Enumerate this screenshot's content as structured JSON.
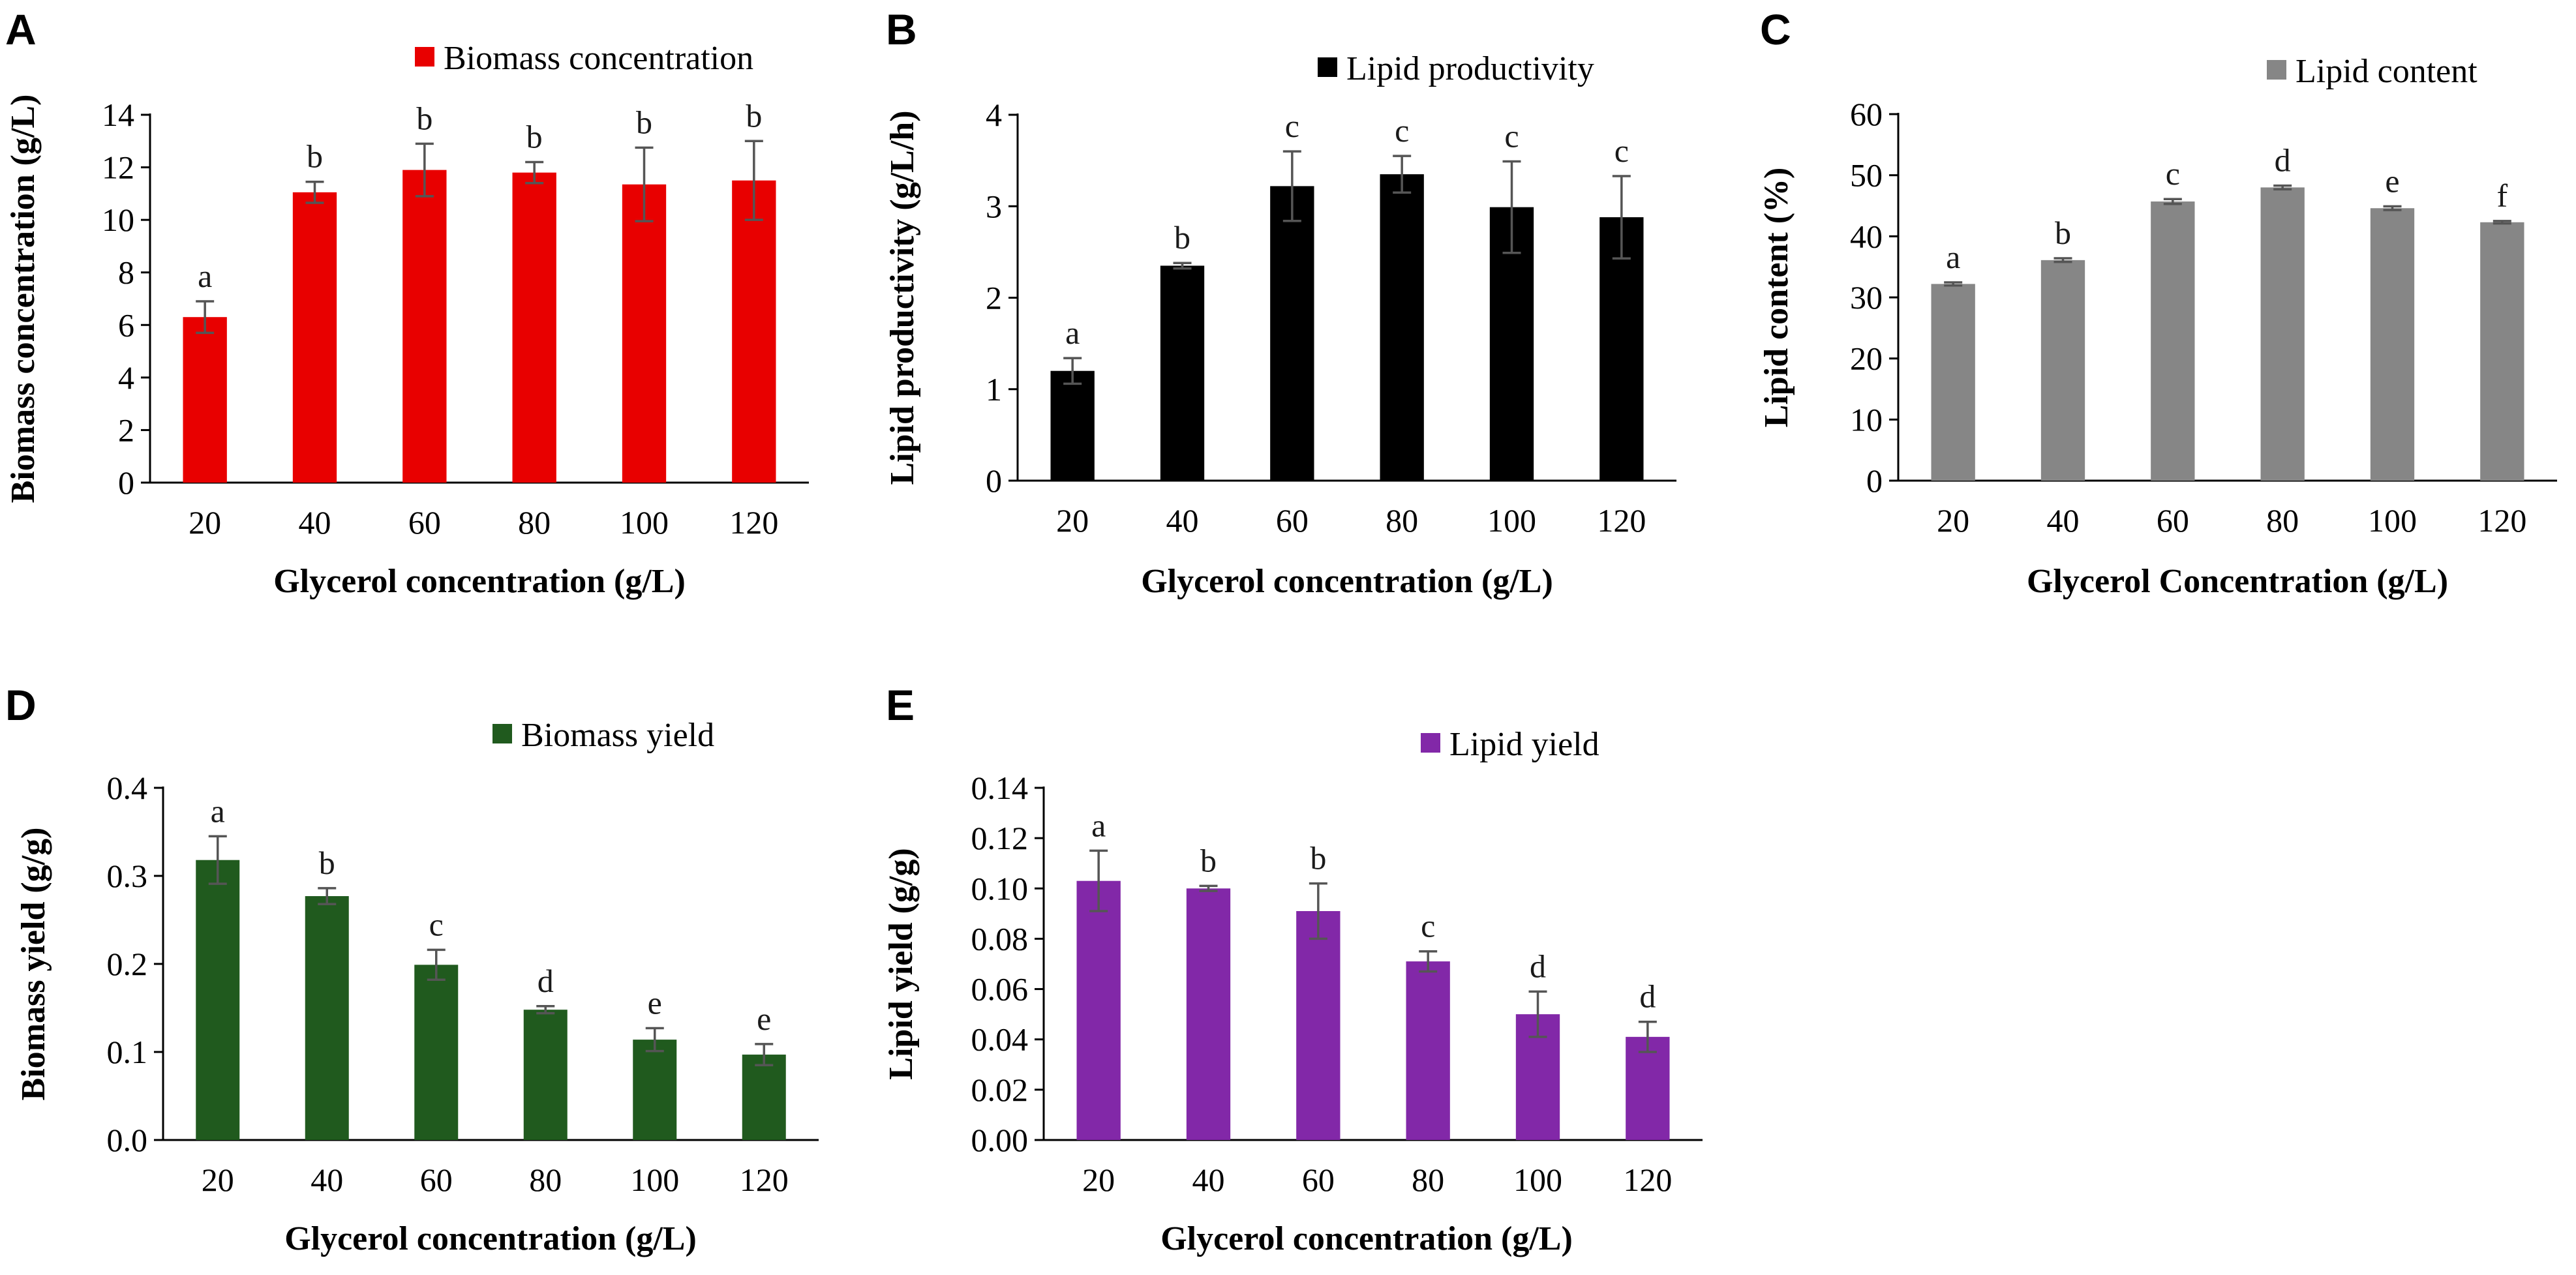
{
  "chart_data": [
    {
      "type": "bar",
      "panel": "A",
      "legend": "Biomass concentration",
      "color": "#e80000",
      "categories": [
        "20",
        "40",
        "60",
        "80",
        "100",
        "120"
      ],
      "values": [
        6.3,
        11.05,
        11.9,
        11.8,
        11.35,
        11.5
      ],
      "errors": [
        0.6,
        0.4,
        1.0,
        0.4,
        1.4,
        1.5
      ],
      "significance": [
        "a",
        "b",
        "b",
        "b",
        "b",
        "b"
      ],
      "ylim": [
        0,
        14
      ],
      "yticks": [
        "0",
        "2",
        "4",
        "6",
        "8",
        "10",
        "12",
        "14"
      ],
      "xlabel": "Glycerol concentration (g/L)",
      "ylabel": "Biomass concentration (g/L)"
    },
    {
      "type": "bar",
      "panel": "B",
      "legend": "Lipid productivity",
      "color": "#000000",
      "categories": [
        "20",
        "40",
        "60",
        "80",
        "100",
        "120"
      ],
      "values": [
        1.2,
        2.35,
        3.22,
        3.35,
        2.99,
        2.88
      ],
      "errors": [
        0.14,
        0.03,
        0.38,
        0.2,
        0.5,
        0.45
      ],
      "significance": [
        "a",
        "b",
        "c",
        "c",
        "c",
        "c"
      ],
      "ylim": [
        0,
        4
      ],
      "yticks": [
        "0",
        "1",
        "2",
        "3",
        "4"
      ],
      "xlabel": "Glycerol concentration (g/L)",
      "ylabel": "Lipid productivity (g/L/h)"
    },
    {
      "type": "bar",
      "panel": "C",
      "legend": "Lipid content",
      "color": "#868686",
      "categories": [
        "20",
        "40",
        "60",
        "80",
        "100",
        "120"
      ],
      "values": [
        32.2,
        36.1,
        45.7,
        48.0,
        44.6,
        42.3
      ],
      "errors": [
        0.25,
        0.3,
        0.4,
        0.3,
        0.3,
        0.2
      ],
      "significance": [
        "a",
        "b",
        "c",
        "d",
        "e",
        "f"
      ],
      "ylim": [
        0,
        60
      ],
      "yticks": [
        "0",
        "10",
        "20",
        "30",
        "40",
        "50",
        "60"
      ],
      "xlabel": "Glycerol Concentration (g/L)",
      "ylabel": "Lipid content (%)"
    },
    {
      "type": "bar",
      "panel": "D",
      "legend": "Biomass yield",
      "color": "#205a1e",
      "categories": [
        "20",
        "40",
        "60",
        "80",
        "100",
        "120"
      ],
      "values": [
        0.318,
        0.277,
        0.199,
        0.148,
        0.114,
        0.097
      ],
      "errors": [
        0.027,
        0.009,
        0.017,
        0.004,
        0.013,
        0.012
      ],
      "significance": [
        "a",
        "b",
        "c",
        "d",
        "e",
        "e"
      ],
      "ylim": [
        0,
        0.4
      ],
      "yticks": [
        "0.0",
        "0.1",
        "0.2",
        "0.3",
        "0.4"
      ],
      "xlabel": "Glycerol concentration (g/L)",
      "ylabel": "Biomass yield (g/g)"
    },
    {
      "type": "bar",
      "panel": "E",
      "legend": "Lipid yield",
      "color": "#8228a8",
      "categories": [
        "20",
        "40",
        "60",
        "80",
        "100",
        "120"
      ],
      "values": [
        0.103,
        0.1,
        0.091,
        0.071,
        0.05,
        0.041
      ],
      "errors": [
        0.012,
        0.001,
        0.011,
        0.004,
        0.009,
        0.006
      ],
      "significance": [
        "a",
        "b",
        "b",
        "c",
        "d",
        "d"
      ],
      "ylim": [
        0,
        0.14
      ],
      "yticks": [
        "0.00",
        "0.02",
        "0.04",
        "0.06",
        "0.08",
        "0.10",
        "0.12",
        "0.14"
      ],
      "xlabel": "Glycerol concentration (g/L)",
      "ylabel": "Lipid yield (g/g)"
    }
  ]
}
